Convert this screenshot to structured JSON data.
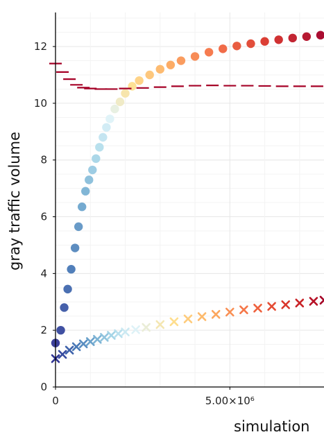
{
  "chart_data": {
    "type": "scatter",
    "xlabel": "simulation",
    "ylabel": "gray traffic volume",
    "xlim": [
      0,
      7700000
    ],
    "ylim": [
      0,
      13.2
    ],
    "x_tick_labels": [
      {
        "value": 0,
        "label": "0"
      },
      {
        "value": 5000000,
        "label": "5.00×10⁶"
      }
    ],
    "y_tick_labels": [
      {
        "value": 0,
        "label": "0"
      },
      {
        "value": 2,
        "label": "2"
      },
      {
        "value": 4,
        "label": "4"
      },
      {
        "value": 6,
        "label": "6"
      },
      {
        "value": 8,
        "label": "8"
      },
      {
        "value": 10,
        "label": "10"
      },
      {
        "value": 12,
        "label": "12"
      }
    ],
    "grid": true,
    "legend": "none",
    "colormap": [
      "#313695",
      "#4575b4",
      "#74add1",
      "#abd9e9",
      "#e0f3f8",
      "#fee090",
      "#fdae61",
      "#f46d43",
      "#d73027",
      "#a50026"
    ],
    "series": [
      {
        "marker": "circle",
        "color": "colormap",
        "x": [
          0,
          150000,
          250000,
          350000,
          450000,
          560000,
          660000,
          760000,
          860000,
          960000,
          1060000,
          1160000,
          1260000,
          1360000,
          1460000,
          1560000,
          1700000,
          1850000,
          2000000,
          2200000,
          2400000,
          2700000,
          3000000,
          3300000,
          3600000,
          4000000,
          4400000,
          4800000,
          5200000,
          5600000,
          6000000,
          6400000,
          6800000,
          7200000,
          7600000
        ],
        "y": [
          1.55,
          2.0,
          2.8,
          3.45,
          4.15,
          4.9,
          5.65,
          6.35,
          6.9,
          7.3,
          7.65,
          8.05,
          8.45,
          8.8,
          9.15,
          9.45,
          9.8,
          10.05,
          10.35,
          10.6,
          10.8,
          11.0,
          11.2,
          11.35,
          11.5,
          11.65,
          11.8,
          11.92,
          12.02,
          12.1,
          12.18,
          12.24,
          12.3,
          12.35,
          12.4
        ]
      },
      {
        "marker": "cross",
        "color": "colormap",
        "x": [
          0,
          200000,
          400000,
          600000,
          800000,
          1000000,
          1200000,
          1400000,
          1600000,
          1800000,
          2000000,
          2300000,
          2600000,
          3000000,
          3400000,
          3800000,
          4200000,
          4600000,
          5000000,
          5400000,
          5800000,
          6200000,
          6600000,
          7000000,
          7400000,
          7700000
        ],
        "y": [
          1.0,
          1.15,
          1.3,
          1.42,
          1.52,
          1.6,
          1.68,
          1.75,
          1.82,
          1.88,
          1.94,
          2.02,
          2.1,
          2.2,
          2.3,
          2.4,
          2.48,
          2.56,
          2.64,
          2.72,
          2.78,
          2.84,
          2.9,
          2.96,
          3.02,
          3.06
        ]
      },
      {
        "marker": "dash",
        "color": "#a50026",
        "x": [
          0,
          200000,
          400000,
          600000,
          800000,
          1000000,
          1300000,
          1600000,
          2000000,
          2500000,
          3000000,
          3500000,
          4000000,
          4500000,
          5000000,
          5500000,
          6000000,
          6500000,
          7000000,
          7500000
        ],
        "y": [
          11.4,
          11.1,
          10.85,
          10.65,
          10.55,
          10.52,
          10.5,
          10.5,
          10.52,
          10.54,
          10.57,
          10.6,
          10.62,
          10.63,
          10.62,
          10.62,
          10.61,
          10.6,
          10.6,
          10.6
        ]
      }
    ]
  }
}
